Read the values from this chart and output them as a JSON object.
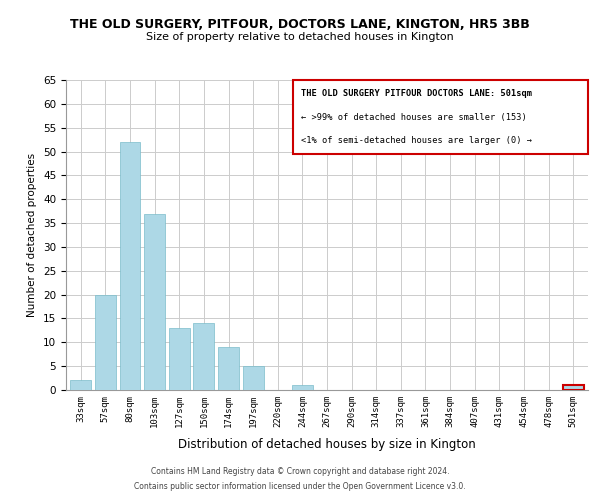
{
  "title": "THE OLD SURGERY, PITFOUR, DOCTORS LANE, KINGTON, HR5 3BB",
  "subtitle": "Size of property relative to detached houses in Kington",
  "xlabel": "Distribution of detached houses by size in Kington",
  "ylabel": "Number of detached properties",
  "bar_labels": [
    "33sqm",
    "57sqm",
    "80sqm",
    "103sqm",
    "127sqm",
    "150sqm",
    "174sqm",
    "197sqm",
    "220sqm",
    "244sqm",
    "267sqm",
    "290sqm",
    "314sqm",
    "337sqm",
    "361sqm",
    "384sqm",
    "407sqm",
    "431sqm",
    "454sqm",
    "478sqm",
    "501sqm"
  ],
  "bar_values": [
    2,
    20,
    52,
    37,
    13,
    14,
    9,
    5,
    0,
    1,
    0,
    0,
    0,
    0,
    0,
    0,
    0,
    0,
    0,
    0,
    1
  ],
  "bar_color": "#add8e6",
  "bar_edge_color": "#7bbcca",
  "highlight_bar_index": 20,
  "highlight_bar_edge_color": "#cc0000",
  "ylim": [
    0,
    65
  ],
  "yticks": [
    0,
    5,
    10,
    15,
    20,
    25,
    30,
    35,
    40,
    45,
    50,
    55,
    60,
    65
  ],
  "box_text_line1": "THE OLD SURGERY PITFOUR DOCTORS LANE: 501sqm",
  "box_text_line2": "← >99% of detached houses are smaller (153)",
  "box_text_line3": "<1% of semi-detached houses are larger (0) →",
  "box_color": "#cc0000",
  "footnote1": "Contains HM Land Registry data © Crown copyright and database right 2024.",
  "footnote2": "Contains public sector information licensed under the Open Government Licence v3.0.",
  "background_color": "#ffffff",
  "grid_color": "#cccccc"
}
